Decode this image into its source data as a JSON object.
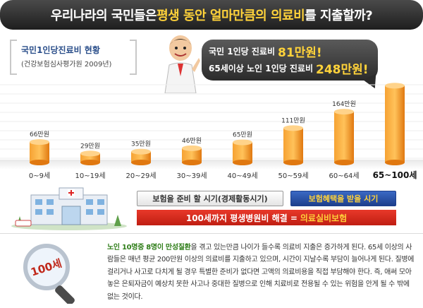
{
  "banner": {
    "text_before": "우리나라의 국민들은 ",
    "text_highlight": "평생 동안 얼마만큼의 의료비",
    "text_after": "를 지출할까?"
  },
  "subtitle": {
    "main": "국민1인당진료비 현황",
    "sub": "(건강보험심사평가원 2009년)"
  },
  "bubble": {
    "line1_text": "국민 1인당 진료비",
    "line1_value": "81만원!",
    "line2_text": "65세이상 노인 1인당 진료비",
    "line2_value": "248만원!"
  },
  "chart_data": {
    "type": "bar",
    "categories": [
      "0~9세",
      "10~19세",
      "20~29세",
      "30~39세",
      "40~49세",
      "50~59세",
      "60~64세",
      "65~100세"
    ],
    "values": [
      66,
      29,
      35,
      46,
      65,
      111,
      164,
      248
    ],
    "value_labels": [
      "66만원",
      "29만원",
      "35만원",
      "46만원",
      "65만원",
      "111만원",
      "164만원",
      ""
    ],
    "ylim": [
      0,
      260
    ],
    "grid": true,
    "highlight_category": "65~100세"
  },
  "buttons": {
    "prepare": "보험을 준비 할 시기(경제활동시기)",
    "benefit": "보험혜택을 받을 시기"
  },
  "red_bar": {
    "text": "100세까지 평생병원비 해결 =",
    "highlight": "의료실비보험"
  },
  "magnifier_label": "100세",
  "paragraph": {
    "lead": "노인 10명중 8명이 만성질환",
    "text": "을 겪고 있는만큼 나이가 들수록 의료비 지출은 증가하게 된다. 65세 이상의 사람들은 매년 평균 200만원 이상의 의료비를 지출하고 있으며, 시간이 지날수록 부담이 늘어나게 된다. 질병에 걸리거나 사고로 다치게 될 경우 특별한 준비가 없다면 고액의 의료비용을 직접 부담해야 한다. 즉, 애써 모아놓은 은퇴자금이 예상치 못한 사고나 중대한 질병으로 인해 치료비로 전용될 수 있는 위험을 안게 될 수 밖에 없는 것이다."
  },
  "colors": {
    "bar_orange": "#f08a1c",
    "highlight_yellow": "#ffd23a",
    "button_blue": "#1d3f8c",
    "red_bar": "#d0281b",
    "lead_green": "#2e7d18"
  }
}
